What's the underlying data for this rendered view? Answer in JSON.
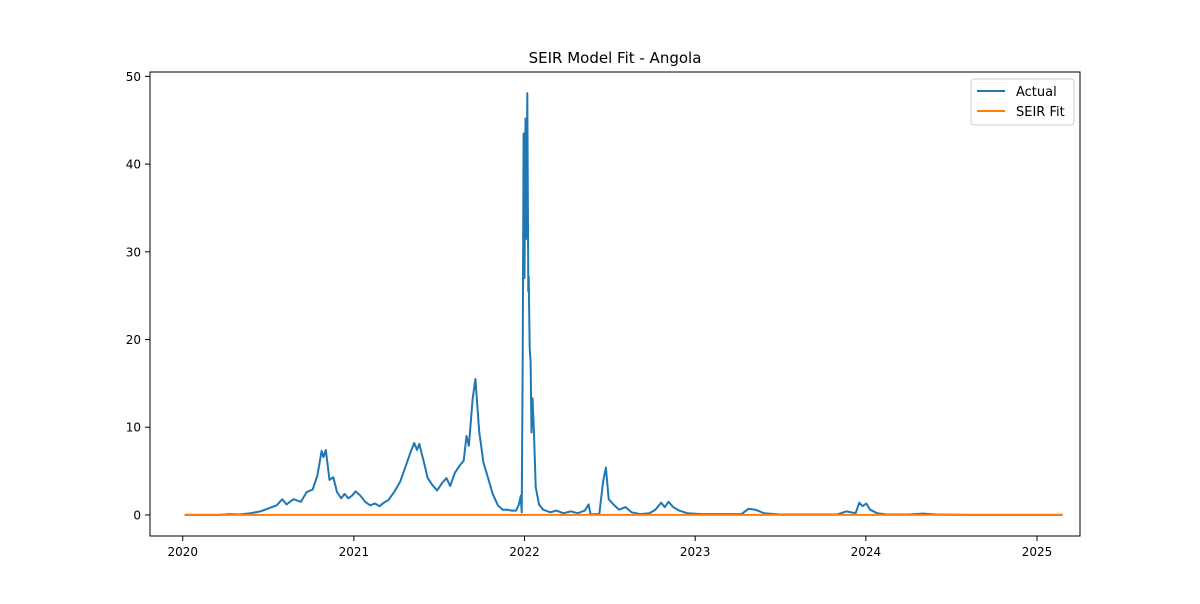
{
  "chart_data": {
    "type": "line",
    "title": "SEIR Model Fit - Angola",
    "xlabel": "",
    "ylabel": "",
    "x_axis": {
      "kind": "date",
      "range": [
        "2019-10-23",
        "2025-04-03"
      ],
      "ticks": [
        {
          "x": "2020-01-01",
          "label": "2020"
        },
        {
          "x": "2021-01-01",
          "label": "2021"
        },
        {
          "x": "2022-01-01",
          "label": "2022"
        },
        {
          "x": "2023-01-01",
          "label": "2023"
        },
        {
          "x": "2024-01-01",
          "label": "2024"
        },
        {
          "x": "2025-01-01",
          "label": "2025"
        }
      ]
    },
    "y_axis": {
      "range": [
        -2.4,
        50.5
      ],
      "ticks": [
        {
          "y": 0,
          "label": "0"
        },
        {
          "y": 10,
          "label": "10"
        },
        {
          "y": 20,
          "label": "20"
        },
        {
          "y": 30,
          "label": "30"
        },
        {
          "y": 40,
          "label": "40"
        },
        {
          "y": 50,
          "label": "50"
        }
      ]
    },
    "grid": false,
    "legend": {
      "placement": "top-right",
      "entries": [
        "Actual",
        "SEIR Fit"
      ]
    },
    "series": [
      {
        "name": "Actual",
        "color": "#1f77b4",
        "points": [
          [
            "2020-01-05",
            0
          ],
          [
            "2020-03-20",
            0
          ],
          [
            "2020-04-10",
            0.1
          ],
          [
            "2020-05-01",
            0.05
          ],
          [
            "2020-05-25",
            0.2
          ],
          [
            "2020-06-15",
            0.4
          ],
          [
            "2020-07-05",
            0.8
          ],
          [
            "2020-07-20",
            1.1
          ],
          [
            "2020-08-01",
            1.8
          ],
          [
            "2020-08-10",
            1.2
          ],
          [
            "2020-08-25",
            1.8
          ],
          [
            "2020-09-10",
            1.5
          ],
          [
            "2020-09-22",
            2.6
          ],
          [
            "2020-10-05",
            2.9
          ],
          [
            "2020-10-15",
            4.5
          ],
          [
            "2020-10-24",
            7.3
          ],
          [
            "2020-10-28",
            6.6
          ],
          [
            "2020-11-02",
            7.4
          ],
          [
            "2020-11-10",
            4.0
          ],
          [
            "2020-11-18",
            4.3
          ],
          [
            "2020-11-26",
            2.6
          ],
          [
            "2020-12-05",
            1.9
          ],
          [
            "2020-12-12",
            2.4
          ],
          [
            "2020-12-20",
            1.9
          ],
          [
            "2020-12-28",
            2.2
          ],
          [
            "2021-01-05",
            2.7
          ],
          [
            "2021-01-15",
            2.2
          ],
          [
            "2021-01-25",
            1.5
          ],
          [
            "2021-02-05",
            1.1
          ],
          [
            "2021-02-15",
            1.3
          ],
          [
            "2021-02-25",
            1.0
          ],
          [
            "2021-03-06",
            1.4
          ],
          [
            "2021-03-16",
            1.7
          ],
          [
            "2021-03-28",
            2.6
          ],
          [
            "2021-04-10",
            3.8
          ],
          [
            "2021-04-22",
            5.6
          ],
          [
            "2021-05-02",
            7.1
          ],
          [
            "2021-05-10",
            8.2
          ],
          [
            "2021-05-16",
            7.4
          ],
          [
            "2021-05-21",
            8.1
          ],
          [
            "2021-05-30",
            6.2
          ],
          [
            "2021-06-08",
            4.2
          ],
          [
            "2021-06-18",
            3.4
          ],
          [
            "2021-06-28",
            2.8
          ],
          [
            "2021-07-08",
            3.6
          ],
          [
            "2021-07-18",
            4.2
          ],
          [
            "2021-07-26",
            3.3
          ],
          [
            "2021-08-05",
            4.8
          ],
          [
            "2021-08-15",
            5.6
          ],
          [
            "2021-08-24",
            6.2
          ],
          [
            "2021-08-30",
            9.0
          ],
          [
            "2021-09-04",
            7.9
          ],
          [
            "2021-09-12",
            13.2
          ],
          [
            "2021-09-18",
            15.5
          ],
          [
            "2021-09-26",
            9.5
          ],
          [
            "2021-10-05",
            6.0
          ],
          [
            "2021-10-15",
            4.2
          ],
          [
            "2021-10-25",
            2.4
          ],
          [
            "2021-11-05",
            1.1
          ],
          [
            "2021-11-15",
            0.6
          ],
          [
            "2021-11-25",
            0.6
          ],
          [
            "2021-12-05",
            0.5
          ],
          [
            "2021-12-14",
            0.5
          ],
          [
            "2021-12-20",
            1.2
          ],
          [
            "2021-12-24",
            2.2
          ],
          [
            "2021-12-26",
            0.3
          ],
          [
            "2021-12-28",
            17.5
          ],
          [
            "2021-12-30",
            43.5
          ],
          [
            "2022-01-01",
            27.0
          ],
          [
            "2022-01-03",
            45.2
          ],
          [
            "2022-01-05",
            31.5
          ],
          [
            "2022-01-07",
            48.1
          ],
          [
            "2022-01-09",
            25.5
          ],
          [
            "2022-01-10",
            27.2
          ],
          [
            "2022-01-12",
            19.0
          ],
          [
            "2022-01-14",
            17.5
          ],
          [
            "2022-01-16",
            9.4
          ],
          [
            "2022-01-18",
            13.3
          ],
          [
            "2022-01-21",
            9.6
          ],
          [
            "2022-01-25",
            3.2
          ],
          [
            "2022-02-01",
            1.2
          ],
          [
            "2022-02-10",
            0.6
          ],
          [
            "2022-02-25",
            0.3
          ],
          [
            "2022-03-10",
            0.5
          ],
          [
            "2022-03-25",
            0.2
          ],
          [
            "2022-04-10",
            0.4
          ],
          [
            "2022-04-25",
            0.2
          ],
          [
            "2022-05-10",
            0.5
          ],
          [
            "2022-05-18",
            1.2
          ],
          [
            "2022-05-22",
            0.1
          ],
          [
            "2022-06-10",
            0.1
          ],
          [
            "2022-06-18",
            3.8
          ],
          [
            "2022-06-24",
            5.4
          ],
          [
            "2022-06-30",
            1.8
          ],
          [
            "2022-07-10",
            1.2
          ],
          [
            "2022-07-22",
            0.6
          ],
          [
            "2022-08-05",
            0.9
          ],
          [
            "2022-08-18",
            0.3
          ],
          [
            "2022-09-05",
            0.1
          ],
          [
            "2022-09-25",
            0.2
          ],
          [
            "2022-10-08",
            0.6
          ],
          [
            "2022-10-20",
            1.4
          ],
          [
            "2022-10-28",
            0.9
          ],
          [
            "2022-11-05",
            1.5
          ],
          [
            "2022-11-15",
            0.9
          ],
          [
            "2022-11-28",
            0.5
          ],
          [
            "2022-12-15",
            0.2
          ],
          [
            "2023-01-15",
            0.1
          ],
          [
            "2023-03-01",
            0.1
          ],
          [
            "2023-04-10",
            0.1
          ],
          [
            "2023-04-25",
            0.7
          ],
          [
            "2023-05-10",
            0.6
          ],
          [
            "2023-05-28",
            0.2
          ],
          [
            "2023-07-01",
            0.05
          ],
          [
            "2023-09-01",
            0.05
          ],
          [
            "2023-11-01",
            0.05
          ],
          [
            "2023-11-20",
            0.4
          ],
          [
            "2023-12-10",
            0.2
          ],
          [
            "2023-12-18",
            1.4
          ],
          [
            "2023-12-25",
            1.0
          ],
          [
            "2024-01-02",
            1.3
          ],
          [
            "2024-01-10",
            0.6
          ],
          [
            "2024-01-25",
            0.2
          ],
          [
            "2024-02-15",
            0.05
          ],
          [
            "2024-04-01",
            0.05
          ],
          [
            "2024-05-01",
            0.15
          ],
          [
            "2024-06-01",
            0.05
          ],
          [
            "2024-08-01",
            0
          ],
          [
            "2024-11-01",
            0
          ],
          [
            "2025-02-25",
            0
          ]
        ]
      },
      {
        "name": "SEIR Fit",
        "color": "#ff7f0e",
        "points": [
          [
            "2020-01-05",
            0
          ],
          [
            "2025-02-25",
            0
          ]
        ]
      }
    ]
  }
}
